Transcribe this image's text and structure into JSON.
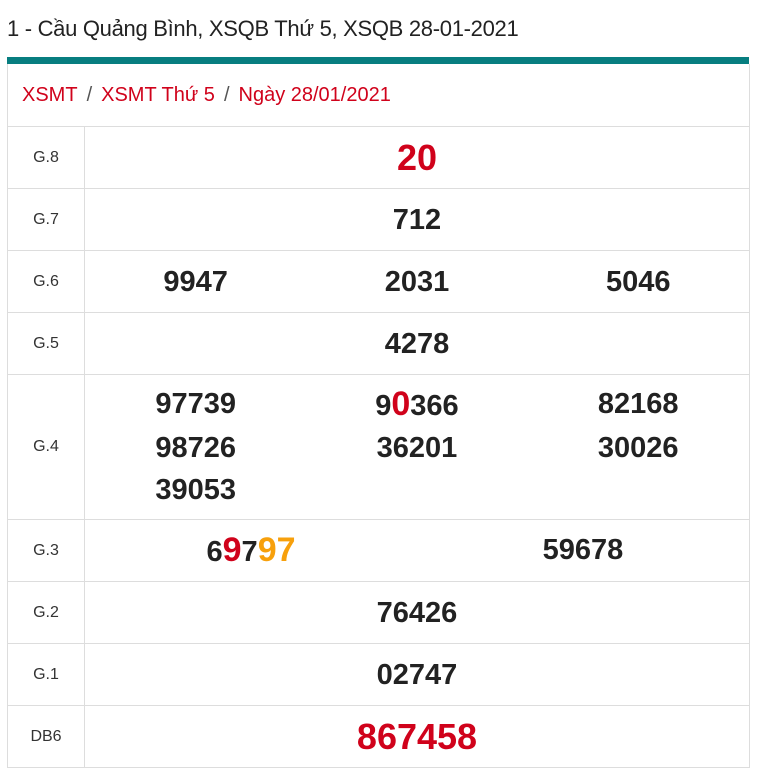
{
  "title": "1 - Cầu Quảng Bình, XSQB Thứ 5, XSQB 28-01-2021",
  "breadcrumb": [
    "XSMT",
    "XSMT Thứ 5",
    "Ngày 28/01/2021"
  ],
  "breadcrumb_sep": "/",
  "colors": {
    "accent_bar": "#077e80",
    "red": "#d0021b",
    "orange": "#f7a00c"
  },
  "rows": [
    {
      "label": "G.8",
      "cols": 1,
      "style": "red-big",
      "numbers": [
        [
          {
            "t": "20"
          }
        ]
      ]
    },
    {
      "label": "G.7",
      "cols": 1,
      "numbers": [
        [
          {
            "t": "712"
          }
        ]
      ]
    },
    {
      "label": "G.6",
      "cols": 3,
      "numbers": [
        [
          {
            "t": "9947"
          }
        ],
        [
          {
            "t": "2031"
          }
        ],
        [
          {
            "t": "5046"
          }
        ]
      ]
    },
    {
      "label": "G.5",
      "cols": 1,
      "numbers": [
        [
          {
            "t": "4278"
          }
        ]
      ]
    },
    {
      "label": "G.4",
      "cols": 3,
      "numbers": [
        [
          {
            "t": "97739"
          }
        ],
        [
          {
            "t": "9"
          },
          {
            "t": "0",
            "h": "red"
          },
          {
            "t": "366"
          }
        ],
        [
          {
            "t": "82168"
          }
        ],
        [
          {
            "t": "98726"
          }
        ],
        [
          {
            "t": "36201"
          }
        ],
        [
          {
            "t": "30026"
          }
        ],
        [
          {
            "t": "39053"
          }
        ]
      ]
    },
    {
      "label": "G.3",
      "cols": 2,
      "numbers": [
        [
          {
            "t": "6"
          },
          {
            "t": "9",
            "h": "red"
          },
          {
            "t": "7"
          },
          {
            "t": "97",
            "h": "or"
          }
        ],
        [
          {
            "t": "59678"
          }
        ]
      ]
    },
    {
      "label": "G.2",
      "cols": 1,
      "numbers": [
        [
          {
            "t": "76426"
          }
        ]
      ]
    },
    {
      "label": "G.1",
      "cols": 1,
      "numbers": [
        [
          {
            "t": "02747"
          }
        ]
      ]
    },
    {
      "label": "DB6",
      "cols": 1,
      "style": "red-big",
      "numbers": [
        [
          {
            "t": "867458"
          }
        ]
      ]
    }
  ]
}
